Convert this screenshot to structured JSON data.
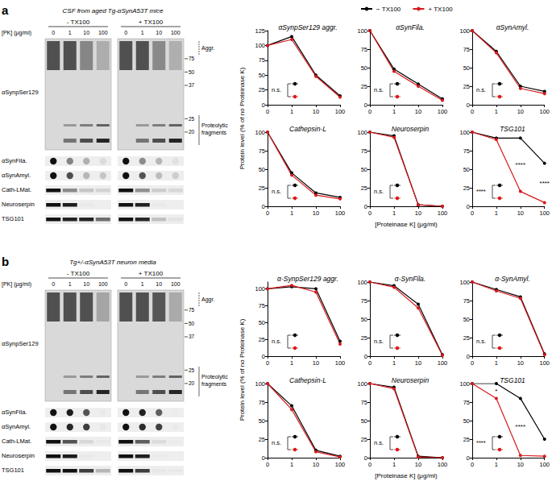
{
  "figure": {
    "panels": [
      {
        "letter": "a",
        "sample": "CSF from aged Tg-αSynA53T mice",
        "conditions": [
          "- TX100",
          "+ TX100"
        ],
        "pk_label": "[PK] (μg/ml)",
        "pk_doses": [
          "0",
          "1",
          "10",
          "100"
        ],
        "blot_label": "αSynpSer129",
        "mw_markers": [
          75,
          50,
          37,
          25,
          20
        ],
        "regions": [
          "Aggr.",
          "Proteolytic fragments"
        ],
        "rows": [
          "αSynFila.",
          "αSynAmyl.",
          "Cath-LMat.",
          "Neuroserpin",
          "TSG101"
        ],
        "ylabel": "Protein level (% of no Proteinase K)",
        "xlabel": "[Proteinase K] (μg/ml)"
      },
      {
        "letter": "b",
        "sample": "Tg+/-αSynA53T neuron media",
        "conditions": [
          "- TX100",
          "+ TX100"
        ],
        "pk_label": "[PK] (μg/ml)",
        "pk_doses": [
          "0",
          "1",
          "10",
          "100"
        ],
        "blot_label": "αSynpSer129",
        "mw_markers": [
          75,
          50,
          37,
          25,
          20
        ],
        "regions": [
          "Aggr.",
          "Proteolytic fragments"
        ],
        "rows": [
          "αSynFila.",
          "αSynAmyl.",
          "Cath-LMat.",
          "Neuroserpin",
          "TSG101"
        ],
        "ylabel": "Protein level (% of no Proteinase K)",
        "xlabel": "[Proteinase K] (μg/ml)"
      }
    ]
  },
  "chart_data": [
    {
      "type": "line",
      "title": "αSynpSer129 aggr.",
      "categories": [
        "0",
        "1",
        "10",
        "100"
      ],
      "ylim": [
        0,
        125
      ],
      "yticks": [
        0,
        25,
        50,
        75,
        100,
        125
      ],
      "series": [
        {
          "name": "− TX100",
          "color": "#000000",
          "marker": "circle",
          "values": [
            100,
            115,
            50,
            15
          ]
        },
        {
          "name": "+ TX100",
          "color": "#d7191c",
          "marker": "circle",
          "values": [
            100,
            110,
            48,
            13
          ]
        }
      ],
      "annotations": [
        {
          "text": "n.s."
        }
      ]
    },
    {
      "type": "line",
      "title": "αSynFila.",
      "categories": [
        "0",
        "1",
        "10",
        "100"
      ],
      "ylim": [
        0,
        100
      ],
      "yticks": [
        0,
        25,
        50,
        75,
        100
      ],
      "series": [
        {
          "name": "− TX100",
          "color": "#000000",
          "marker": "circle",
          "values": [
            100,
            48,
            28,
            8
          ]
        },
        {
          "name": "+ TX100",
          "color": "#d7191c",
          "marker": "circle",
          "values": [
            100,
            45,
            25,
            6
          ]
        }
      ],
      "annotations": [
        {
          "text": "n.s."
        }
      ]
    },
    {
      "type": "line",
      "title": "αSynAmyl.",
      "categories": [
        "0",
        "1",
        "10",
        "100"
      ],
      "ylim": [
        0,
        100
      ],
      "yticks": [
        0,
        25,
        50,
        75,
        100
      ],
      "series": [
        {
          "name": "− TX100",
          "color": "#000000",
          "marker": "circle",
          "values": [
            100,
            72,
            25,
            18
          ]
        },
        {
          "name": "+ TX100",
          "color": "#d7191c",
          "marker": "circle",
          "values": [
            100,
            70,
            22,
            15
          ]
        }
      ],
      "annotations": [
        {
          "text": "n.s."
        }
      ]
    },
    {
      "type": "line",
      "title": "Cathepsin-L",
      "categories": [
        "0",
        "1",
        "10",
        "100"
      ],
      "ylim": [
        0,
        100
      ],
      "yticks": [
        0,
        25,
        50,
        75,
        100
      ],
      "series": [
        {
          "name": "− TX100",
          "color": "#000000",
          "marker": "circle",
          "values": [
            100,
            45,
            18,
            12
          ]
        },
        {
          "name": "+ TX100",
          "color": "#d7191c",
          "marker": "circle",
          "values": [
            100,
            42,
            15,
            10
          ]
        }
      ],
      "annotations": [
        {
          "text": "n.s."
        }
      ]
    },
    {
      "type": "line",
      "title": "Neuroserpin",
      "categories": [
        "0",
        "1",
        "10",
        "100"
      ],
      "ylim": [
        0,
        100
      ],
      "yticks": [
        0,
        25,
        50,
        75,
        100
      ],
      "series": [
        {
          "name": "− TX100",
          "color": "#000000",
          "marker": "circle",
          "values": [
            100,
            95,
            2,
            0
          ]
        },
        {
          "name": "+ TX100",
          "color": "#d7191c",
          "marker": "circle",
          "values": [
            100,
            93,
            2,
            0
          ]
        }
      ],
      "annotations": [
        {
          "text": "n.s."
        }
      ]
    },
    {
      "type": "line",
      "title": "TSG101",
      "categories": [
        "0",
        "1",
        "10",
        "100"
      ],
      "ylim": [
        0,
        100
      ],
      "yticks": [
        0,
        25,
        50,
        75,
        100
      ],
      "series": [
        {
          "name": "− TX100",
          "color": "#000000",
          "marker": "circle",
          "values": [
            100,
            92,
            92,
            58
          ]
        },
        {
          "name": "+ TX100",
          "color": "#d7191c",
          "marker": "circle",
          "values": [
            100,
            90,
            20,
            5
          ]
        }
      ],
      "annotations": [
        {
          "text": "****"
        },
        {
          "text": "****",
          "x": "10"
        },
        {
          "text": "****",
          "x": "100"
        }
      ]
    },
    {
      "type": "line",
      "title": "α-SynpSer129 aggr.",
      "categories": [
        "0",
        "1",
        "10",
        "100"
      ],
      "ylim": [
        0,
        110
      ],
      "yticks": [
        0,
        25,
        50,
        75,
        100
      ],
      "series": [
        {
          "name": "− TX100",
          "color": "#000000",
          "marker": "circle",
          "values": [
            100,
            103,
            100,
            22
          ]
        },
        {
          "name": "+ TX100",
          "color": "#d7191c",
          "marker": "circle",
          "values": [
            100,
            105,
            95,
            18
          ]
        }
      ],
      "annotations": [
        {
          "text": "n.s."
        }
      ]
    },
    {
      "type": "line",
      "title": "α-SynFila.",
      "categories": [
        "0",
        "1",
        "10",
        "100"
      ],
      "ylim": [
        0,
        100
      ],
      "yticks": [
        0,
        25,
        50,
        75,
        100
      ],
      "series": [
        {
          "name": "− TX100",
          "color": "#000000",
          "marker": "circle",
          "values": [
            100,
            95,
            70,
            2
          ]
        },
        {
          "name": "+ TX100",
          "color": "#d7191c",
          "marker": "circle",
          "values": [
            100,
            93,
            65,
            1
          ]
        }
      ],
      "annotations": [
        {
          "text": "n.s."
        }
      ]
    },
    {
      "type": "line",
      "title": "α-SynAmyl.",
      "categories": [
        "0",
        "1",
        "10",
        "100"
      ],
      "ylim": [
        0,
        100
      ],
      "yticks": [
        0,
        25,
        50,
        75,
        100
      ],
      "series": [
        {
          "name": "− TX100",
          "color": "#000000",
          "marker": "circle",
          "values": [
            100,
            90,
            80,
            3
          ]
        },
        {
          "name": "+ TX100",
          "color": "#d7191c",
          "marker": "circle",
          "values": [
            100,
            88,
            78,
            2
          ]
        }
      ],
      "annotations": [
        {
          "text": "n.s."
        }
      ]
    },
    {
      "type": "line",
      "title": "Cathepsin-L",
      "categories": [
        "0",
        "1",
        "10",
        "100"
      ],
      "ylim": [
        0,
        100
      ],
      "yticks": [
        0,
        25,
        50,
        75,
        100
      ],
      "series": [
        {
          "name": "− TX100",
          "color": "#000000",
          "marker": "circle",
          "values": [
            100,
            70,
            10,
            2
          ]
        },
        {
          "name": "+ TX100",
          "color": "#d7191c",
          "marker": "circle",
          "values": [
            100,
            65,
            8,
            1
          ]
        }
      ],
      "annotations": [
        {
          "text": "n.s."
        }
      ]
    },
    {
      "type": "line",
      "title": "Neuroserpin",
      "categories": [
        "0",
        "1",
        "10",
        "100"
      ],
      "ylim": [
        0,
        100
      ],
      "yticks": [
        0,
        25,
        50,
        75,
        100
      ],
      "series": [
        {
          "name": "− TX100",
          "color": "#000000",
          "marker": "circle",
          "values": [
            100,
            95,
            2,
            0
          ]
        },
        {
          "name": "+ TX100",
          "color": "#d7191c",
          "marker": "circle",
          "values": [
            100,
            93,
            1,
            0
          ]
        }
      ],
      "annotations": [
        {
          "text": "n.s."
        }
      ]
    },
    {
      "type": "line",
      "title": "TSG101",
      "categories": [
        "0",
        "1",
        "10",
        "100"
      ],
      "ylim": [
        0,
        100
      ],
      "yticks": [
        0,
        25,
        50,
        75,
        100
      ],
      "series": [
        {
          "name": "− TX100",
          "color": "#000000",
          "marker": "circle",
          "values": [
            100,
            100,
            80,
            25
          ]
        },
        {
          "name": "+ TX100",
          "color": "#d7191c",
          "marker": "circle",
          "values": [
            100,
            80,
            3,
            2
          ]
        }
      ],
      "annotations": [
        {
          "text": "****"
        },
        {
          "text": "*",
          "x": "1"
        },
        {
          "text": "****",
          "x": "10"
        }
      ]
    }
  ]
}
